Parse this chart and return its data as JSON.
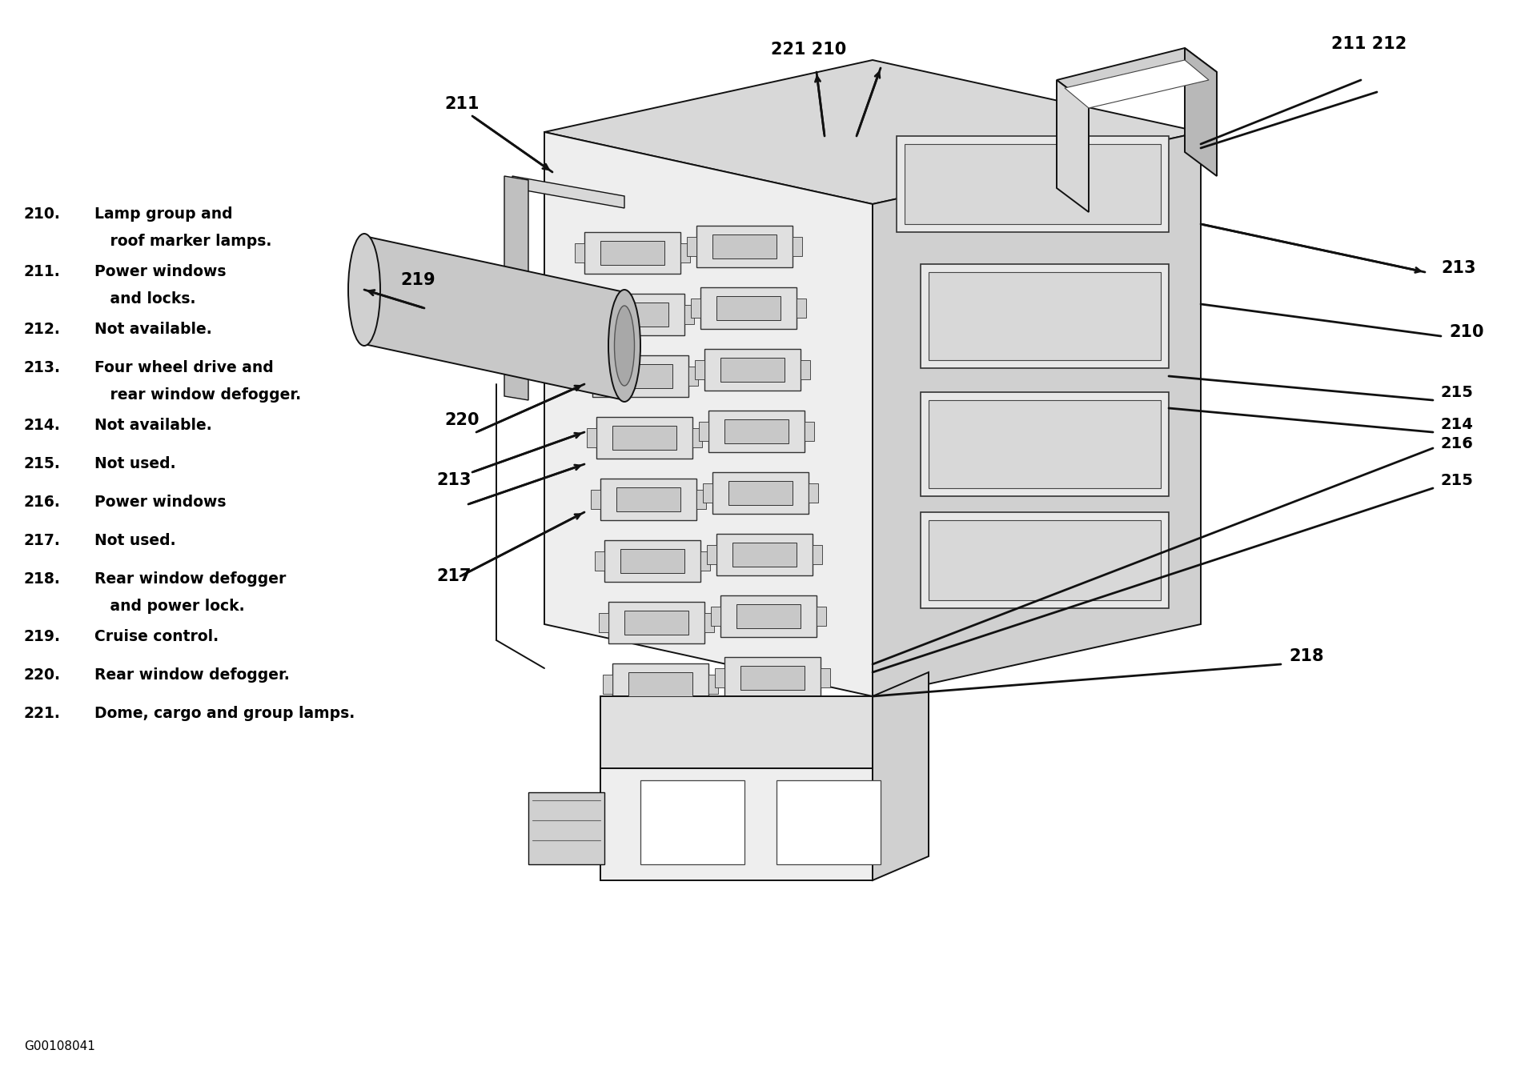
{
  "background_color": "#ffffff",
  "fig_width": 19.06,
  "fig_height": 13.47,
  "dpi": 100,
  "legend_items": [
    {
      "number": "210.",
      "line1": "Lamp group and",
      "line2": "   roof marker lamps."
    },
    {
      "number": "211.",
      "line1": "Power windows",
      "line2": "   and locks."
    },
    {
      "number": "212.",
      "line1": "Not available.",
      "line2": null
    },
    {
      "number": "213.",
      "line1": "Four wheel drive and",
      "line2": "   rear window defogger."
    },
    {
      "number": "214.",
      "line1": "Not available.",
      "line2": null
    },
    {
      "number": "215.",
      "line1": "Not used.",
      "line2": null
    },
    {
      "number": "216.",
      "line1": "Power windows",
      "line2": null
    },
    {
      "number": "217.",
      "line1": "Not used.",
      "line2": null
    },
    {
      "number": "218.",
      "line1": "Rear window defogger",
      "line2": "   and power lock."
    },
    {
      "number": "219.",
      "line1": "Cruise control.",
      "line2": null
    },
    {
      "number": "220.",
      "line1": "Rear window defogger.",
      "line2": null
    },
    {
      "number": "221.",
      "line1": "Dome, cargo and group lamps.",
      "line2": null
    }
  ],
  "footer_text": "G00108041",
  "text_fontsize": 13.5,
  "footer_fontsize": 11,
  "diagram_label_fontsize": 15,
  "lc": "#111111"
}
